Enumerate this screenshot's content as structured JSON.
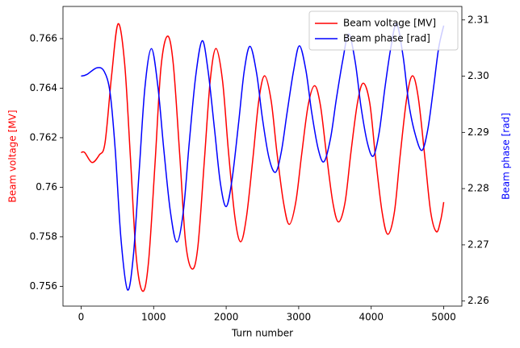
{
  "chart_data": {
    "type": "line",
    "xlabel": "Turn number",
    "ylabel": "Beam voltage [MV]",
    "y2label": "Beam phase [rad]",
    "xlim": [
      -250,
      5250
    ],
    "xticks": [
      0,
      1000,
      2000,
      3000,
      4000,
      5000
    ],
    "ylim": [
      0.7552,
      0.7673
    ],
    "yticks": [
      0.756,
      0.758,
      0.76,
      0.762,
      0.764,
      0.766
    ],
    "y2lim": [
      2.2591,
      2.3124
    ],
    "y2ticks": [
      2.26,
      2.27,
      2.28,
      2.29,
      {
        "value": 2.3,
        "label": "2.30"
      },
      2.31
    ],
    "legend": "upper right",
    "series": [
      {
        "name": "Beam voltage [MV]",
        "color": "#ff0000",
        "axis": "y",
        "x": [
          0,
          50,
          150,
          250,
          330,
          420,
          510,
          600,
          680,
          760,
          850,
          930,
          1020,
          1100,
          1190,
          1270,
          1360,
          1440,
          1530,
          1610,
          1700,
          1780,
          1860,
          1950,
          2030,
          2120,
          2200,
          2280,
          2370,
          2450,
          2530,
          2620,
          2700,
          2790,
          2870,
          2960,
          3040,
          3130,
          3220,
          3300,
          3380,
          3470,
          3550,
          3640,
          3720,
          3810,
          3890,
          3980,
          4060,
          4150,
          4230,
          4320,
          4400,
          4490,
          4570,
          4650,
          4740,
          4820,
          4900,
          4960,
          5000
        ],
        "values": [
          0.7614,
          0.7614,
          0.761,
          0.7613,
          0.7618,
          0.7645,
          0.7666,
          0.765,
          0.7612,
          0.7572,
          0.7558,
          0.757,
          0.761,
          0.7648,
          0.7661,
          0.765,
          0.7613,
          0.7578,
          0.7567,
          0.7576,
          0.7611,
          0.7643,
          0.7656,
          0.7643,
          0.7615,
          0.7588,
          0.7578,
          0.7588,
          0.7612,
          0.7635,
          0.7645,
          0.7635,
          0.7614,
          0.7594,
          0.7585,
          0.7594,
          0.7613,
          0.7633,
          0.7641,
          0.7633,
          0.7614,
          0.7594,
          0.7586,
          0.7594,
          0.7614,
          0.7634,
          0.7642,
          0.7634,
          0.7612,
          0.759,
          0.7581,
          0.759,
          0.7613,
          0.7636,
          0.7645,
          0.7636,
          0.7612,
          0.759,
          0.7582,
          0.7587,
          0.7594
        ]
      },
      {
        "name": "Beam phase [rad]",
        "color": "#0000ff",
        "axis": "y2",
        "x": [
          0,
          80,
          220,
          320,
          400,
          470,
          550,
          640,
          720,
          800,
          880,
          970,
          1060,
          1140,
          1230,
          1320,
          1410,
          1490,
          1580,
          1670,
          1750,
          1840,
          1920,
          2000,
          2080,
          2170,
          2250,
          2330,
          2420,
          2500,
          2590,
          2680,
          2760,
          2840,
          2930,
          3010,
          3100,
          3180,
          3270,
          3350,
          3440,
          3520,
          3610,
          3690,
          3780,
          3860,
          3950,
          4030,
          4110,
          4190,
          4270,
          4350,
          4440,
          4520,
          4610,
          4700,
          4780,
          4860,
          4930,
          5000
        ],
        "values": [
          2.3,
          2.3003,
          2.3015,
          2.3008,
          2.297,
          2.287,
          2.271,
          2.262,
          2.268,
          2.283,
          2.298,
          2.3049,
          2.298,
          2.287,
          2.276,
          2.2705,
          2.276,
          2.288,
          2.3,
          2.3063,
          2.301,
          2.2905,
          2.281,
          2.2768,
          2.2815,
          2.2915,
          2.301,
          2.3053,
          2.3005,
          2.2925,
          2.2855,
          2.2829,
          2.2865,
          2.2935,
          2.301,
          2.3054,
          2.301,
          2.2935,
          2.287,
          2.2848,
          2.289,
          2.296,
          2.303,
          2.3075,
          2.3025,
          2.2945,
          2.288,
          2.2858,
          2.29,
          2.298,
          2.305,
          2.3093,
          2.3035,
          2.295,
          2.2895,
          2.2868,
          2.2905,
          2.298,
          2.305,
          2.309
        ]
      }
    ]
  }
}
